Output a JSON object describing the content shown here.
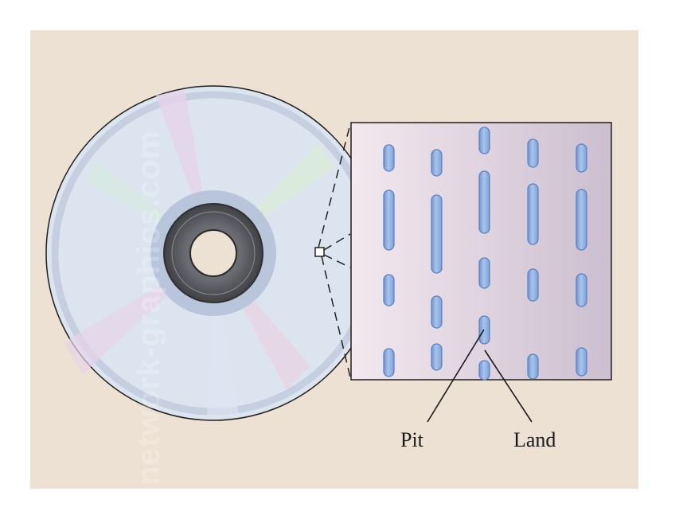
{
  "diagram": {
    "labels": {
      "pit": "Pit",
      "land": "Land"
    },
    "watermark": "network-graphics.com",
    "colors": {
      "background_panel": "#ede1d3",
      "disc_face": "#dde5f1",
      "disc_rim": "#c8d2e2",
      "hub_ring": "#b7c4da",
      "hub_dark": "#5c5e63",
      "pit_fill": "#8fb0e0",
      "pit_stroke": "#5a7fbd",
      "inset_left": "#f3e8ee",
      "inset_right": "#cbbfd0"
    }
  }
}
